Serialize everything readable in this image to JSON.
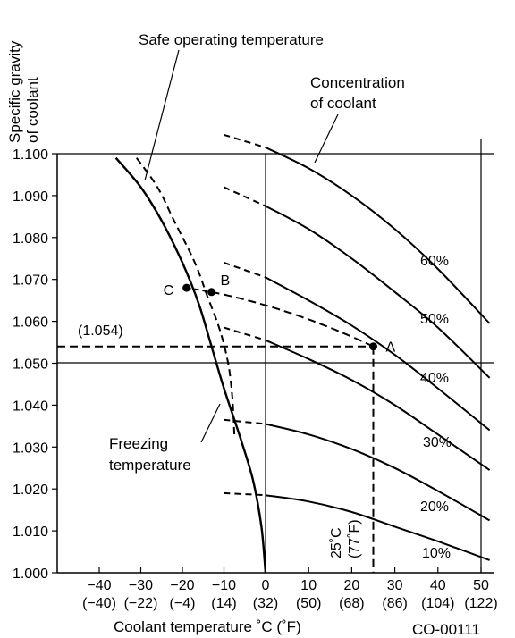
{
  "chart_data": {
    "type": "line",
    "ylabel_line1": "Specific gravity",
    "ylabel_line2": "of coolant",
    "xlabel": "Coolant temperature ˚C (˚F)",
    "figure_code": "CO-00111",
    "yticks": [
      "1.000",
      "1.010",
      "1.020",
      "1.030",
      "1.040",
      "1.050",
      "1.060",
      "1.070",
      "1.080",
      "1.090",
      "1.100"
    ],
    "xticks_c": [
      "−40",
      "−30",
      "−20",
      "−10",
      "0",
      "10",
      "20",
      "30",
      "40",
      "50"
    ],
    "xticks_f": [
      "(−40)",
      "(−22)",
      "(−4)",
      "(14)",
      "(32)",
      "(50)",
      "(68)",
      "(86)",
      "(104)",
      "(122)"
    ],
    "xlim": [
      -50,
      53
    ],
    "ylim": [
      1.0,
      1.105
    ],
    "concentration_series": [
      {
        "name": "10%",
        "x": [
          -10,
          0,
          10,
          20,
          30,
          40,
          52
        ],
        "y": [
          1.019,
          1.0185,
          1.017,
          1.0145,
          1.011,
          1.0075,
          1.003
        ]
      },
      {
        "name": "20%",
        "x": [
          -10,
          0,
          10,
          20,
          30,
          40,
          52
        ],
        "y": [
          1.0365,
          1.0355,
          1.033,
          1.0295,
          1.025,
          1.0195,
          1.0125
        ]
      },
      {
        "name": "30%",
        "x": [
          -10,
          0,
          10,
          20,
          30,
          40,
          52
        ],
        "y": [
          1.0585,
          1.0555,
          1.051,
          1.046,
          1.04,
          1.033,
          1.0245
        ]
      },
      {
        "name": "40%",
        "x": [
          -10,
          0,
          10,
          20,
          30,
          40,
          52
        ],
        "y": [
          1.074,
          1.0705,
          1.065,
          1.059,
          1.052,
          1.044,
          1.034
        ]
      },
      {
        "name": "50%",
        "x": [
          -10,
          0,
          10,
          20,
          30,
          40,
          52
        ],
        "y": [
          1.092,
          1.0875,
          1.082,
          1.075,
          1.067,
          1.0585,
          1.0465
        ]
      },
      {
        "name": "60%",
        "x": [
          -10,
          0,
          10,
          20,
          30,
          40,
          52
        ],
        "y": [
          1.1045,
          1.1015,
          1.0965,
          1.09,
          1.082,
          1.0725,
          1.0595
        ]
      }
    ],
    "series_labels": [
      "60%",
      "50%",
      "40%",
      "30%",
      "20%",
      "10%"
    ],
    "freezing_temperature": {
      "x": [
        -36,
        -30,
        -25,
        -20,
        -16,
        -13,
        -10,
        -6,
        -3,
        -1,
        0
      ],
      "y": [
        1.099,
        1.092,
        1.084,
        1.074,
        1.064,
        1.054,
        1.044,
        1.032,
        1.022,
        1.011,
        1.0
      ]
    },
    "safe_operating_temperature": {
      "x": [
        -31,
        -26,
        -22,
        -17,
        -14,
        -11,
        -9,
        -8,
        -7.5
      ],
      "y": [
        1.099,
        1.092,
        1.084,
        1.074,
        1.066,
        1.058,
        1.05,
        1.042,
        1.033
      ]
    },
    "points": [
      {
        "label": "A",
        "x": 25,
        "y": 1.054
      },
      {
        "label": "B",
        "x": -13,
        "y": 1.067
      },
      {
        "label": "C",
        "x": -19,
        "y": 1.068
      }
    ],
    "reading_value": "(1.054)",
    "reading_temp_c": "25˚C",
    "reading_temp_f": "(77˚F)",
    "annotations": {
      "safe": "Safe operating temperature",
      "conc_line1": "Concentration",
      "conc_line2": "of coolant",
      "freeze_line1": "Freezing",
      "freeze_line2": "temperature"
    }
  }
}
